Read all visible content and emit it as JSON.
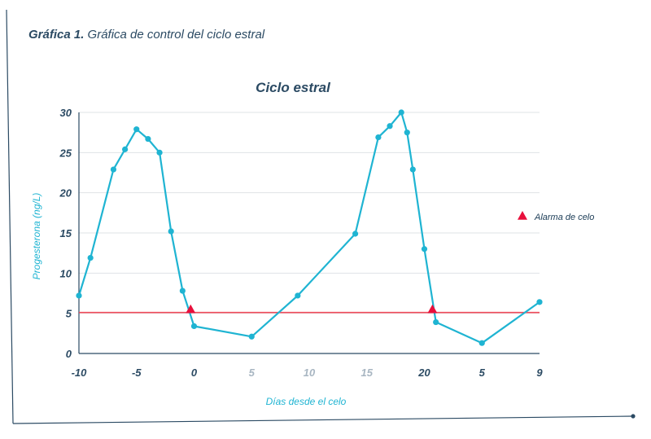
{
  "caption": {
    "lead": "Gráfica 1.",
    "text": "Gráfica de control del ciclo estral"
  },
  "chart_data": {
    "type": "line",
    "title": "Ciclo estral",
    "xlabel": "Días desde el celo",
    "ylabel": "Progesterona (ng/L)",
    "xlim": [
      -10,
      30
    ],
    "ylim": [
      0,
      30
    ],
    "x_ticks": [
      "-10",
      "-5",
      "0",
      "5",
      "10",
      "15",
      "20",
      "5",
      "9"
    ],
    "y_ticks": [
      "0",
      "5",
      "10",
      "15",
      "20",
      "25",
      "30"
    ],
    "grid": true,
    "threshold": {
      "value": 5.1,
      "color": "#f04b5a"
    },
    "series": [
      {
        "color": "#1fb4d2",
        "x": [
          -10,
          -9,
          -7,
          -6,
          -5,
          -4,
          -3,
          -2,
          -1,
          0,
          5,
          9,
          14,
          16,
          17,
          18,
          18.5,
          19,
          20,
          21,
          25,
          30
        ],
        "y": [
          7.2,
          11.9,
          22.9,
          25.4,
          27.9,
          26.7,
          25.0,
          15.2,
          7.8,
          3.4,
          2.1,
          7.2,
          14.9,
          26.9,
          28.3,
          30.0,
          27.5,
          22.9,
          13.0,
          3.9,
          1.3,
          6.4
        ]
      }
    ],
    "markers": {
      "name": "Alarma de celo",
      "color": "#e8103c",
      "x": [
        -0.3,
        20.7
      ],
      "y": [
        5.5,
        5.5
      ]
    },
    "legend_position": "right"
  }
}
